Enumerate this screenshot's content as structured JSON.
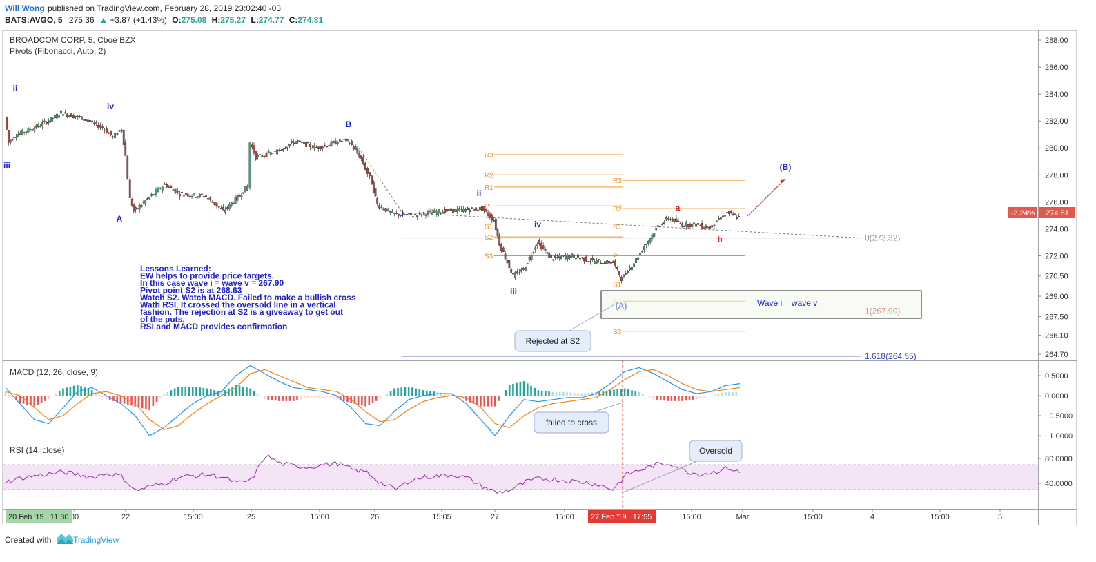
{
  "header": {
    "author": "Will Wong",
    "published_text": "published on TradingView.com, February 28, 2019 23:02:40 -03",
    "symbol_line": "BATS:AVGO, 5",
    "last_price": "275.36",
    "change_text": "+3.87 (+1.43%)",
    "ohlc": {
      "o_label": "O:",
      "o": "275.08",
      "h_label": "H:",
      "h": "275.27",
      "l_label": "L:",
      "l": "274.77",
      "c_label": "C:",
      "c": "274.81"
    }
  },
  "legend": {
    "instrument": "BROADCOM CORP, 5, Cboe BZX",
    "pivots": "Pivots (Fibonacci, Auto, 2)"
  },
  "price_axis": {
    "ticks": [
      "288.00",
      "286.00",
      "284.00",
      "282.00",
      "280.00",
      "278.00",
      "276.00",
      "274.00",
      "272.00",
      "270.50",
      "269.00",
      "267.50",
      "266.10",
      "264.70"
    ],
    "current_badge": "274.81",
    "current_change_badge": "-2.24%"
  },
  "time_axis": {
    "ticks": [
      "00",
      "22",
      "15:00",
      "25",
      "15:00",
      "26",
      "15:05",
      "27",
      "15:00",
      "15:00",
      "Mar",
      "15:00",
      "4",
      "15:00",
      "5"
    ],
    "left_badge": "20 Feb '19   11:30",
    "cursor_badge": "27 Feb '19   17:55"
  },
  "wave_labels": [
    "ii",
    "iv",
    "iii",
    "A",
    "B",
    "i",
    "ii",
    "iv",
    "iii",
    "(A)",
    "a",
    "b",
    "(B)"
  ],
  "pivot_levels": {
    "group1": [
      "R3",
      "R2",
      "R1",
      "P",
      "S1",
      "S2",
      "S3"
    ],
    "group2": [
      "R3",
      "R2",
      "R1",
      "P",
      "S1",
      "S2",
      "S3"
    ]
  },
  "fib_levels": [
    {
      "label": "0(273.32)",
      "value": 273.32
    },
    {
      "label": "1(267.90)",
      "value": 267.9
    },
    {
      "label": "1.618(264.55)",
      "value": 264.55
    }
  ],
  "notes": {
    "lessons": [
      "Lessons Learned:",
      "EW helps to provide price targets.",
      "In this case wave i = wave v = 267.90",
      "Pivot point S2 is at 268.63",
      "Watch S2. Watch MACD. Failed to make a bullish cross",
      "Wath RSI. It crossed the oversold line in a vertical",
      "fashion. The rejection at S2 is a giveaway to get out",
      "of the puts.",
      "RSI and MACD provides confirmation"
    ],
    "wave_box": "Wave i = wave v",
    "callout_rejected": "Rejected at S2",
    "callout_cross": "failed to cross",
    "callout_oversold": "Oversold"
  },
  "macd": {
    "title": "MACD (12, 26, close, 9)",
    "ticks": [
      "0.5000",
      "0.0000",
      "−0.5000",
      "−1.0000"
    ]
  },
  "rsi": {
    "title": "RSI (14, close)",
    "ticks": [
      "80.0000",
      "40.0000"
    ]
  },
  "footer": {
    "created_with": "Created with",
    "brand": "TradingView"
  },
  "colors": {
    "up": "#26a69a",
    "down": "#ef5350",
    "wave_blue": "#1e22c8",
    "wave_red": "#e0201e",
    "pivot_orange": "#f0902c",
    "macd_blue": "#2196f3",
    "macd_orange": "#ff7f0e",
    "rsi_line": "#9c27b0",
    "rsi_fill": "#f3e5f5"
  },
  "chart_data": {
    "type": "line",
    "title": "BROADCOM CORP, 5, Cboe BZX",
    "price_range": [
      264.0,
      288.5
    ],
    "series": [
      {
        "name": "BROADCOM CORP",
        "unit": "price",
        "values": [
          {
            "x": "20 Feb 11:30",
            "y": 282.3
          },
          {
            "x": "20 Feb 12:30",
            "y": 280.4
          },
          {
            "x": "20 Feb 13:30",
            "y": 280.9
          },
          {
            "x": "21 Feb 09:30",
            "y": 281.7
          },
          {
            "x": "21 Feb 11:30",
            "y": 282.6
          },
          {
            "x": "21 Feb 13:30",
            "y": 282.2
          },
          {
            "x": "21 Feb 15:00",
            "y": 281.5
          },
          {
            "x": "21 Feb 15:30",
            "y": 280.8
          },
          {
            "x": "21 Feb 15:55",
            "y": 281.4
          },
          {
            "x": "22 Feb 09:30",
            "y": 279.4
          },
          {
            "x": "22 Feb 10:00",
            "y": 276.2
          },
          {
            "x": "22 Feb 10:30",
            "y": 275.3
          },
          {
            "x": "22 Feb 12:00",
            "y": 276.2
          },
          {
            "x": "22 Feb 13:00",
            "y": 277.3
          },
          {
            "x": "22 Feb 14:00",
            "y": 276.6
          },
          {
            "x": "22 Feb 15:00",
            "y": 276.4
          },
          {
            "x": "22 Feb 15:30",
            "y": 275.3
          },
          {
            "x": "22 Feb 15:55",
            "y": 277.1
          },
          {
            "x": "25 Feb 09:30",
            "y": 280.4
          },
          {
            "x": "25 Feb 11:00",
            "y": 279.3
          },
          {
            "x": "25 Feb 12:30",
            "y": 279.7
          },
          {
            "x": "25 Feb 14:00",
            "y": 280.5
          },
          {
            "x": "25 Feb 15:00",
            "y": 280.0
          },
          {
            "x": "25 Feb 15:55",
            "y": 280.6
          },
          {
            "x": "26 Feb 09:30",
            "y": 280.4
          },
          {
            "x": "26 Feb 10:00",
            "y": 279.2
          },
          {
            "x": "26 Feb 10:30",
            "y": 277.4
          },
          {
            "x": "26 Feb 11:00",
            "y": 275.8
          },
          {
            "x": "26 Feb 12:00",
            "y": 275.1
          },
          {
            "x": "26 Feb 13:30",
            "y": 275.0
          },
          {
            "x": "26 Feb 15:05",
            "y": 275.3
          },
          {
            "x": "26 Feb 15:55",
            "y": 275.5
          },
          {
            "x": "27 Feb 09:30",
            "y": 274.6
          },
          {
            "x": "27 Feb 10:00",
            "y": 272.9
          },
          {
            "x": "27 Feb 10:30",
            "y": 270.5
          },
          {
            "x": "27 Feb 11:00",
            "y": 271.0
          },
          {
            "x": "27 Feb 12:00",
            "y": 273.0
          },
          {
            "x": "27 Feb 13:00",
            "y": 271.8
          },
          {
            "x": "27 Feb 14:00",
            "y": 272.0
          },
          {
            "x": "27 Feb 15:00",
            "y": 271.6
          },
          {
            "x": "27 Feb 15:55",
            "y": 271.5
          },
          {
            "x": "27 Feb 17:55",
            "y": 270.3
          },
          {
            "x": "28 Feb 09:30",
            "y": 271.5
          },
          {
            "x": "28 Feb 10:00",
            "y": 272.7
          },
          {
            "x": "28 Feb 11:00",
            "y": 274.2
          },
          {
            "x": "28 Feb 12:00",
            "y": 274.8
          },
          {
            "x": "28 Feb 13:00",
            "y": 274.3
          },
          {
            "x": "28 Feb 15:00",
            "y": 274.3
          },
          {
            "x": "28 Feb 15:30",
            "y": 274.1
          },
          {
            "x": "28 Feb 15:40",
            "y": 274.6
          },
          {
            "x": "28 Feb 15:50",
            "y": 275.2
          },
          {
            "x": "28 Feb 15:55",
            "y": 274.81
          }
        ]
      },
      {
        "name": "Pivots group 1",
        "unit": "price",
        "values": [
          {
            "x": "R3",
            "y": 279.5
          },
          {
            "x": "R2",
            "y": 278.0
          },
          {
            "x": "R1",
            "y": 277.1
          },
          {
            "x": "P",
            "y": 275.7
          },
          {
            "x": "S1",
            "y": 274.2
          },
          {
            "x": "S2",
            "y": 273.4
          },
          {
            "x": "S3",
            "y": 272.0
          }
        ]
      },
      {
        "name": "Pivots group 2",
        "unit": "price",
        "values": [
          {
            "x": "R3",
            "y": 277.6
          },
          {
            "x": "R2",
            "y": 275.5
          },
          {
            "x": "R1",
            "y": 274.2
          },
          {
            "x": "P",
            "y": 272.0
          },
          {
            "x": "S1",
            "y": 269.9
          },
          {
            "x": "S2",
            "y": 268.63
          },
          {
            "x": "S3",
            "y": 266.4
          }
        ]
      },
      {
        "name": "Fib levels",
        "unit": "price",
        "values": [
          {
            "x": "0",
            "y": 273.32
          },
          {
            "x": "1",
            "y": 267.9
          },
          {
            "x": "1.618",
            "y": 264.55
          }
        ]
      }
    ],
    "macd_series": [
      {
        "name": "MACD",
        "values": [
          0.2,
          -0.2,
          -0.6,
          -0.7,
          -0.3,
          0.1,
          0.2,
          0.0,
          -0.2,
          -0.5,
          -1.0,
          -0.8,
          -0.5,
          -0.2,
          0.0,
          0.1,
          0.5,
          0.75,
          0.55,
          0.35,
          0.2,
          0.15,
          0.1,
          0.0,
          -0.3,
          -0.7,
          -0.75,
          -0.4,
          -0.1,
          0.0,
          0.05,
          0.05,
          -0.2,
          -0.6,
          -1.0,
          -0.5,
          -0.1,
          -0.15,
          -0.1,
          -0.05,
          -0.05,
          0.05,
          0.3,
          0.6,
          0.7,
          0.55,
          0.35,
          0.15,
          0.05,
          0.1,
          0.25,
          0.3
        ]
      },
      {
        "name": "Signal",
        "values": [
          0.1,
          0.0,
          -0.3,
          -0.6,
          -0.5,
          -0.2,
          0.05,
          0.1,
          0.0,
          -0.2,
          -0.6,
          -0.85,
          -0.75,
          -0.45,
          -0.2,
          0.0,
          0.2,
          0.55,
          0.65,
          0.5,
          0.35,
          0.2,
          0.15,
          0.1,
          -0.1,
          -0.4,
          -0.65,
          -0.6,
          -0.35,
          -0.15,
          -0.05,
          0.0,
          -0.05,
          -0.3,
          -0.7,
          -0.8,
          -0.5,
          -0.3,
          -0.2,
          -0.15,
          -0.1,
          -0.05,
          0.15,
          0.4,
          0.6,
          0.65,
          0.5,
          0.3,
          0.15,
          0.1,
          0.15,
          0.2
        ]
      }
    ],
    "rsi_series": {
      "name": "RSI",
      "values": [
        42,
        48,
        52,
        55,
        58,
        54,
        50,
        56,
        52,
        28,
        35,
        40,
        50,
        52,
        54,
        50,
        40,
        45,
        85,
        72,
        68,
        66,
        70,
        72,
        62,
        58,
        40,
        30,
        45,
        50,
        52,
        54,
        48,
        35,
        25,
        30,
        42,
        48,
        46,
        44,
        42,
        38,
        30,
        55,
        62,
        70,
        72,
        60,
        55,
        58,
        65,
        55
      ]
    },
    "rsi_range": [
      20,
      90
    ],
    "macd_range": [
      -1.05,
      0.75
    ],
    "grid": false,
    "legend": "top-left"
  }
}
